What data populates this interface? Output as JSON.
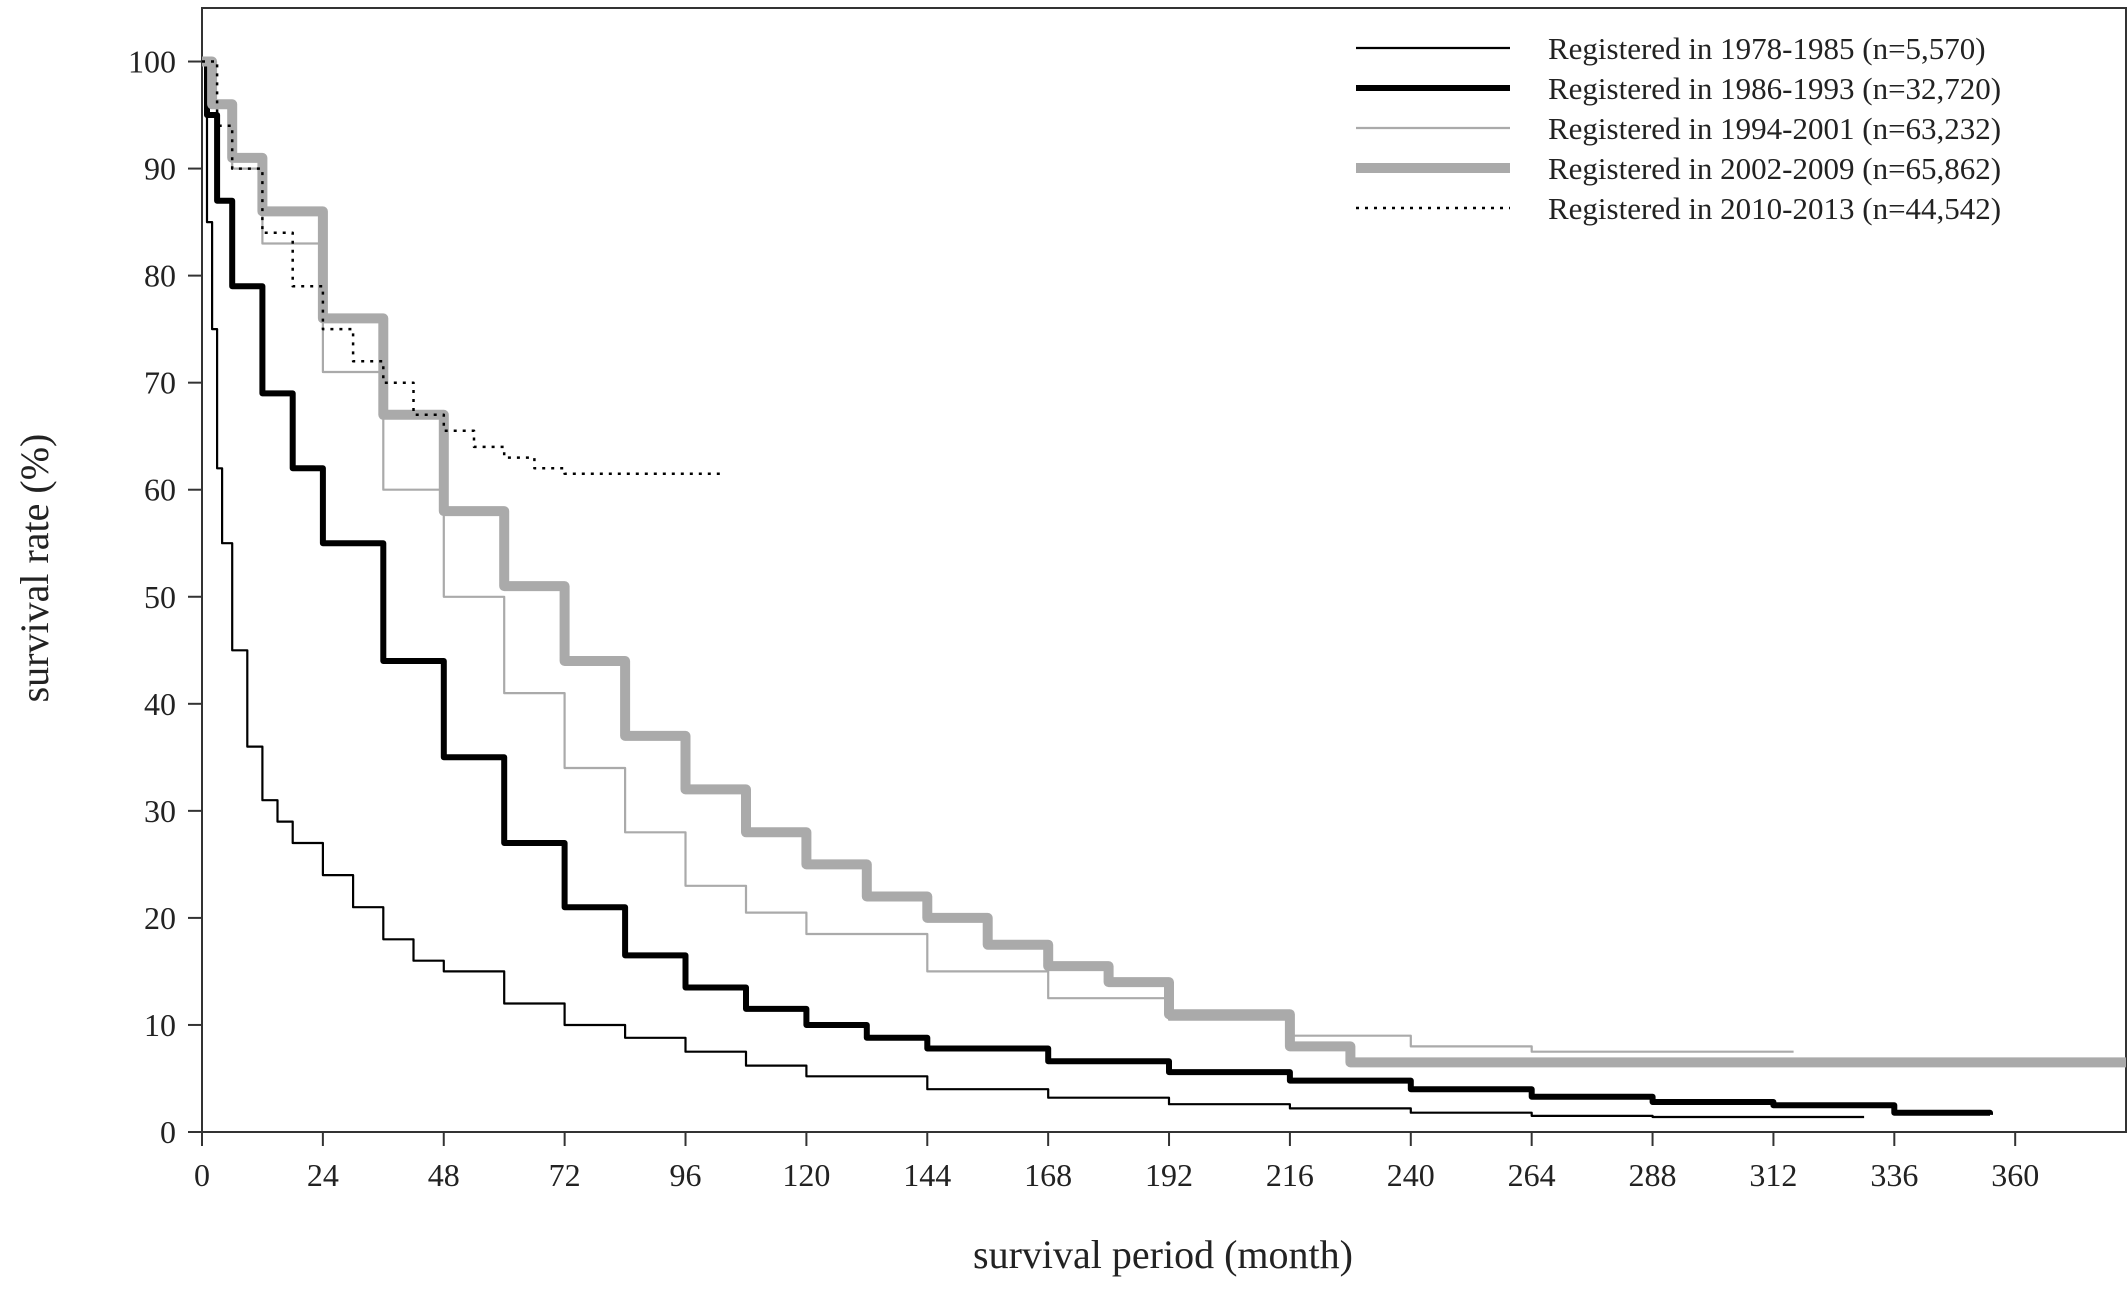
{
  "chart_data": {
    "type": "line",
    "title": "",
    "xlabel": "survival period (month)",
    "ylabel": "survival rate (%)",
    "xlim": [
      0,
      382
    ],
    "ylim": [
      0,
      105
    ],
    "xticks": [
      0,
      24,
      48,
      72,
      96,
      120,
      144,
      168,
      192,
      216,
      240,
      264,
      288,
      312,
      336,
      360
    ],
    "yticks": [
      0,
      10,
      20,
      30,
      40,
      50,
      60,
      70,
      80,
      90,
      100
    ],
    "grid": false,
    "legend_position": "top-right",
    "series": [
      {
        "name": "Registered in 1978-1985 (n=5,570)",
        "color": "#000000",
        "style": "thin-solid",
        "points": [
          [
            0,
            100
          ],
          [
            1,
            85
          ],
          [
            2,
            75
          ],
          [
            3,
            62
          ],
          [
            4,
            55
          ],
          [
            6,
            45
          ],
          [
            9,
            36
          ],
          [
            12,
            31
          ],
          [
            15,
            29
          ],
          [
            18,
            27
          ],
          [
            24,
            24
          ],
          [
            30,
            21
          ],
          [
            36,
            18
          ],
          [
            42,
            16
          ],
          [
            48,
            15
          ],
          [
            60,
            12
          ],
          [
            72,
            10
          ],
          [
            84,
            8.8
          ],
          [
            96,
            7.5
          ],
          [
            108,
            6.2
          ],
          [
            120,
            5.2
          ],
          [
            144,
            4.0
          ],
          [
            168,
            3.2
          ],
          [
            192,
            2.6
          ],
          [
            216,
            2.2
          ],
          [
            240,
            1.8
          ],
          [
            264,
            1.5
          ],
          [
            288,
            1.4
          ],
          [
            312,
            1.4
          ],
          [
            330,
            1.4
          ]
        ]
      },
      {
        "name": "Registered in 1986-1993 (n=32,720)",
        "color": "#000000",
        "style": "thick-solid",
        "points": [
          [
            0,
            100
          ],
          [
            1,
            95
          ],
          [
            3,
            87
          ],
          [
            6,
            79
          ],
          [
            12,
            69
          ],
          [
            18,
            62
          ],
          [
            24,
            55
          ],
          [
            36,
            44
          ],
          [
            48,
            35
          ],
          [
            60,
            27
          ],
          [
            72,
            21
          ],
          [
            84,
            16.5
          ],
          [
            96,
            13.5
          ],
          [
            108,
            11.5
          ],
          [
            120,
            10
          ],
          [
            132,
            8.8
          ],
          [
            144,
            7.8
          ],
          [
            168,
            6.6
          ],
          [
            192,
            5.6
          ],
          [
            216,
            4.8
          ],
          [
            240,
            4.0
          ],
          [
            264,
            3.3
          ],
          [
            288,
            2.8
          ],
          [
            312,
            2.5
          ],
          [
            336,
            1.8
          ],
          [
            355,
            1.6
          ]
        ]
      },
      {
        "name": "Registered in 1994-2001 (n=63,232)",
        "color": "#aaaaaa",
        "style": "thin-solid",
        "points": [
          [
            0,
            100
          ],
          [
            2,
            96
          ],
          [
            6,
            90
          ],
          [
            12,
            83
          ],
          [
            24,
            71
          ],
          [
            36,
            60
          ],
          [
            48,
            50
          ],
          [
            60,
            41
          ],
          [
            72,
            34
          ],
          [
            84,
            28
          ],
          [
            96,
            23
          ],
          [
            108,
            20.5
          ],
          [
            120,
            18.5
          ],
          [
            144,
            15
          ],
          [
            168,
            12.5
          ],
          [
            192,
            10.5
          ],
          [
            216,
            9
          ],
          [
            240,
            8
          ],
          [
            264,
            7.5
          ],
          [
            290,
            7.5
          ],
          [
            316,
            7.5
          ]
        ]
      },
      {
        "name": "Registered in 2002-2009 (n=65,862)",
        "color": "#aaaaaa",
        "style": "thick-solid",
        "points": [
          [
            0,
            100
          ],
          [
            2,
            96
          ],
          [
            6,
            91
          ],
          [
            12,
            86
          ],
          [
            24,
            76
          ],
          [
            36,
            67
          ],
          [
            48,
            58
          ],
          [
            60,
            51
          ],
          [
            72,
            44
          ],
          [
            84,
            37
          ],
          [
            96,
            32
          ],
          [
            108,
            28
          ],
          [
            120,
            25
          ],
          [
            132,
            22
          ],
          [
            144,
            20
          ],
          [
            156,
            17.5
          ],
          [
            168,
            15.5
          ],
          [
            180,
            14
          ],
          [
            192,
            11
          ],
          [
            216,
            8
          ],
          [
            228,
            6.5
          ],
          [
            260,
            6.5
          ],
          [
            300,
            6.5
          ],
          [
            340,
            6.5
          ],
          [
            383,
            6.5
          ]
        ]
      },
      {
        "name": "Registered in 2010-2013 (n=44,542)",
        "color": "#000000",
        "style": "dotted",
        "points": [
          [
            0,
            100
          ],
          [
            3,
            94
          ],
          [
            6,
            90
          ],
          [
            12,
            84
          ],
          [
            18,
            79
          ],
          [
            24,
            75
          ],
          [
            30,
            72
          ],
          [
            36,
            70
          ],
          [
            42,
            67
          ],
          [
            48,
            65.5
          ],
          [
            54,
            64
          ],
          [
            60,
            63
          ],
          [
            66,
            62
          ],
          [
            72,
            61.5
          ],
          [
            84,
            61.5
          ],
          [
            96,
            61.5
          ],
          [
            104,
            61.5
          ]
        ]
      }
    ]
  }
}
